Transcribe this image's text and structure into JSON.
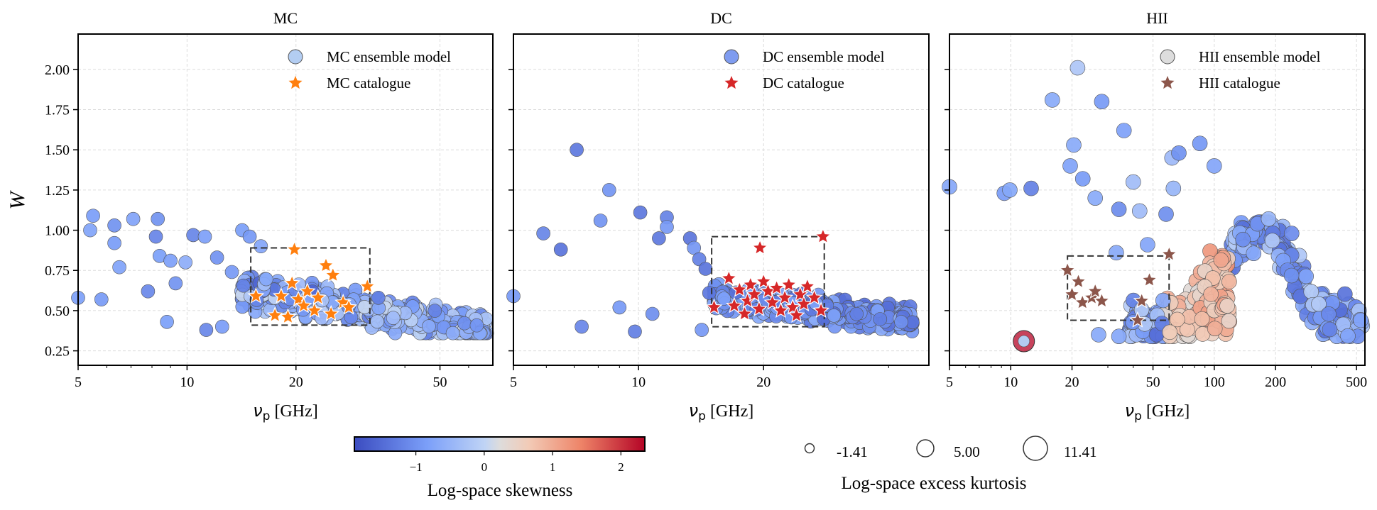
{
  "chart_data": [
    {
      "type": "scatter",
      "title": "MC",
      "xlabel": "ν_p [GHz]",
      "ylabel": "W",
      "x_scale": "log",
      "xlim": [
        5,
        70
      ],
      "ylim": [
        0.16,
        2.22
      ],
      "xticks": [
        5,
        10,
        20,
        50
      ],
      "yticks": [
        "0.25",
        "0.50",
        "0.75",
        "1.00",
        "1.25",
        "1.50",
        "1.75",
        "2.00"
      ],
      "grid": true,
      "legend_placement": "top-right",
      "series": [
        {
          "name": "MC ensemble model",
          "marker": "circle",
          "color": "#b3cdf2"
        },
        {
          "name": "MC catalogue",
          "marker": "star",
          "color": "#ff7f0e",
          "points": [
            [
              15.5,
              0.59
            ],
            [
              17.5,
              0.47
            ],
            [
              18.2,
              0.59
            ],
            [
              19.0,
              0.46
            ],
            [
              19.5,
              0.67
            ],
            [
              19.8,
              0.88
            ],
            [
              20.3,
              0.57
            ],
            [
              21.0,
              0.53
            ],
            [
              21.5,
              0.62
            ],
            [
              22.5,
              0.5
            ],
            [
              23.0,
              0.58
            ],
            [
              24.2,
              0.78
            ],
            [
              25.0,
              0.48
            ],
            [
              25.3,
              0.72
            ],
            [
              27.0,
              0.55
            ],
            [
              28.0,
              0.52
            ],
            [
              31.5,
              0.65
            ]
          ]
        }
      ],
      "selection_box": {
        "x": [
          15,
          32
        ],
        "y": [
          0.41,
          0.89
        ]
      }
    },
    {
      "type": "scatter",
      "title": "DC",
      "xlabel": "ν_p [GHz]",
      "xlim": [
        5,
        50
      ],
      "ylim": [
        0.16,
        2.22
      ],
      "xticks": [
        5,
        10,
        20
      ],
      "grid": true,
      "legend_placement": "top-right",
      "series": [
        {
          "name": "DC ensemble model",
          "marker": "circle",
          "color": "#7f9cf0"
        },
        {
          "name": "DC catalogue",
          "marker": "star",
          "color": "#d62728",
          "points": [
            [
              15.2,
              0.52
            ],
            [
              16.5,
              0.7
            ],
            [
              17.0,
              0.53
            ],
            [
              17.5,
              0.63
            ],
            [
              18.0,
              0.48
            ],
            [
              18.3,
              0.56
            ],
            [
              18.6,
              0.66
            ],
            [
              19.0,
              0.6
            ],
            [
              19.5,
              0.51
            ],
            [
              19.6,
              0.89
            ],
            [
              20.0,
              0.68
            ],
            [
              20.5,
              0.62
            ],
            [
              21.0,
              0.55
            ],
            [
              21.5,
              0.64
            ],
            [
              22.0,
              0.5
            ],
            [
              22.5,
              0.58
            ],
            [
              23.0,
              0.66
            ],
            [
              23.5,
              0.52
            ],
            [
              24.0,
              0.47
            ],
            [
              24.5,
              0.6
            ],
            [
              25.0,
              0.54
            ],
            [
              25.5,
              0.65
            ],
            [
              26.5,
              0.58
            ],
            [
              27.5,
              0.5
            ],
            [
              27.8,
              0.96
            ]
          ]
        }
      ],
      "selection_box": {
        "x": [
          15,
          28
        ],
        "y": [
          0.4,
          0.96
        ]
      }
    },
    {
      "type": "scatter",
      "title": "HII",
      "xlabel": "ν_p [GHz]",
      "x_scale": "log",
      "xlim": [
        5,
        550
      ],
      "ylim": [
        0.16,
        2.22
      ],
      "xticks": [
        5,
        10,
        20,
        50,
        100,
        200,
        500
      ],
      "grid": true,
      "legend_placement": "top-right",
      "series": [
        {
          "name": "HII ensemble model",
          "marker": "circle",
          "color": "#dddddd"
        },
        {
          "name": "HII catalogue",
          "marker": "star",
          "color": "#8c564b",
          "points": [
            [
              19,
              0.75
            ],
            [
              20,
              0.6
            ],
            [
              21.5,
              0.68
            ],
            [
              22.5,
              0.55
            ],
            [
              25,
              0.58
            ],
            [
              26,
              0.62
            ],
            [
              28,
              0.56
            ],
            [
              42,
              0.44
            ],
            [
              44,
              0.56
            ],
            [
              48,
              0.69
            ],
            [
              60,
              0.85
            ]
          ]
        }
      ],
      "selection_box": {
        "x": [
          19,
          60
        ],
        "y": [
          0.44,
          0.84
        ]
      }
    }
  ],
  "colorbar": {
    "label": "Log-space skewness",
    "ticks": [
      "−1",
      "0",
      "1",
      "2"
    ],
    "tick_values": [
      -1,
      0,
      1,
      2
    ],
    "range": [
      -1.9,
      2.35
    ],
    "colormap": "coolwarm"
  },
  "size_legend": {
    "title": "Log-space excess kurtosis",
    "entries": [
      "-1.41",
      "5.00",
      "11.41"
    ]
  }
}
